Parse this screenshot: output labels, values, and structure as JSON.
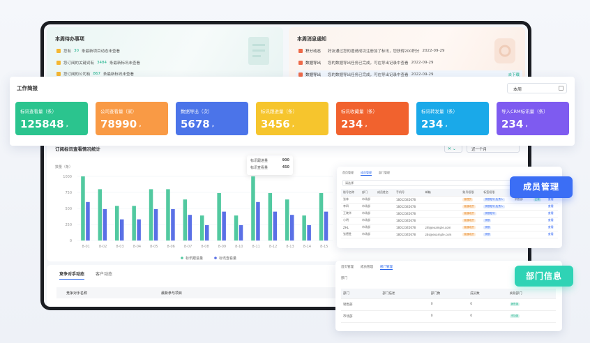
{
  "todo": {
    "title": "本周待办事项",
    "items": [
      {
        "pre": "您有",
        "num": "30",
        "post": "条最新项目动态未查看"
      },
      {
        "pre": "您订阅的关键词有",
        "num": "3484",
        "post": "条最新标讯未查看"
      },
      {
        "pre": "您订阅的公司有",
        "num": "867",
        "post": "条最新标讯未查看"
      }
    ]
  },
  "notice": {
    "title": "本周消息通知",
    "items": [
      {
        "tag": "积分动态",
        "text": "好友通过您的邀请成功注册加了标讯，您获得200积分",
        "date": "2022-09-29"
      },
      {
        "tag": "数据导出",
        "text": "您的数据导出任务已完成，可在导出记录中查看",
        "date": "2022-09-29"
      },
      {
        "tag": "数据导出",
        "text": "您的数据导出任务已完成，可在导出记录中查看",
        "date": "2022-09-29",
        "action": "去下载"
      }
    ]
  },
  "report": {
    "title": "工作简报",
    "period": "本周",
    "stats": [
      {
        "label": "标讯查看量（条）",
        "value": "125848",
        "color": "#2bc48e"
      },
      {
        "label": "公司查看量（家）",
        "value": "78990",
        "color": "#f99a45"
      },
      {
        "label": "数据导出（次）",
        "value": "5678",
        "color": "#4b74e9"
      },
      {
        "label": "标讯跟进量（条）",
        "value": "3456",
        "color": "#f6c52d"
      },
      {
        "label": "标讯收藏量（条）",
        "value": "234",
        "color": "#f1622e"
      },
      {
        "label": "标讯转发量（条）",
        "value": "234",
        "color": "#1aa9e9"
      },
      {
        "label": "导入CRM标讯量（条）",
        "value": "234",
        "color": "#7e5bf0"
      }
    ]
  },
  "chart_section": {
    "title": "订阅标讯查看情况统计",
    "filter": "近一个月",
    "tooltip": [
      {
        "label": "标讯跟进量",
        "value": "900"
      },
      {
        "label": "标讯查看量",
        "value": "450"
      }
    ]
  },
  "chart_data": {
    "type": "bar",
    "ylabel": "数量（条）",
    "ylim": [
      0,
      1000
    ],
    "yticks": [
      "1000",
      "750",
      "500",
      "250",
      "0"
    ],
    "categories": [
      "8-01",
      "8-02",
      "8-03",
      "8-04",
      "8-05",
      "8-06",
      "8-07",
      "8-08",
      "8-09",
      "8-10",
      "8-11",
      "8-12",
      "8-13",
      "8-14",
      "8-15"
    ],
    "series": [
      {
        "name": "标讯跟进量",
        "color": "#52c9a0",
        "values": [
          1000,
          800,
          540,
          540,
          800,
          800,
          640,
          390,
          740,
          390,
          1000,
          740,
          640,
          390,
          740
        ]
      },
      {
        "name": "标讯查看量",
        "color": "#5a70e6",
        "values": [
          600,
          490,
          330,
          330,
          490,
          490,
          400,
          240,
          450,
          240,
          600,
          450,
          400,
          240,
          450
        ]
      }
    ]
  },
  "compete": {
    "tabs": [
      "竞争对手动态",
      "客户动态"
    ],
    "columns": [
      "竞争对手名称",
      "最新参与项目"
    ]
  },
  "members_panel": {
    "tabs": [
      "首页管理",
      "成员管理",
      "部门管理"
    ],
    "search": "请选择",
    "columns": [
      "账号名称",
      "部门",
      "成员姓名",
      "手机号",
      "邮箱",
      "账号权限",
      "标签权限",
      "所属部门",
      "状态",
      "操作"
    ],
    "rows": [
      [
        "张林",
        "市场部",
        "",
        "18012345678",
        "",
        "管理员",
        "关联账号,负责人",
        "销售部",
        "正常",
        "查看"
      ],
      [
        "李四",
        "市场部",
        "",
        "18012345678",
        "",
        "普通成员",
        "关联账号,负责人",
        "",
        "",
        "查看"
      ],
      [
        "王晓华",
        "市场部",
        "",
        "18012345678",
        "",
        "普通成员",
        "关联账号",
        "",
        "",
        "查看"
      ],
      [
        "小明",
        "市场部",
        "",
        "18012345678",
        "",
        "普通成员",
        "关联",
        "",
        "",
        "查看"
      ],
      [
        "ZHL",
        "市场部",
        "",
        "18012345678",
        "zhl@example.com",
        "普通成员",
        "关联",
        "",
        "",
        "查看"
      ],
      [
        "张德胜",
        "市场部",
        "",
        "18012345678",
        "zds@example.com",
        "普通成员",
        "关联",
        "",
        "",
        "查看"
      ]
    ],
    "badge": "成员管理"
  },
  "dept_panel": {
    "tabs": [
      "首页管理",
      "成员管理",
      "部门管理"
    ],
    "sub": "部门",
    "columns": [
      "部门",
      "部门描述",
      "部门数",
      "成员数",
      "关联部门"
    ],
    "rows": [
      [
        "销售部",
        "",
        "0",
        "0",
        "销售部"
      ],
      [
        "市场部",
        "",
        "0",
        "0",
        "市场部"
      ]
    ],
    "badge": "部门信息"
  }
}
